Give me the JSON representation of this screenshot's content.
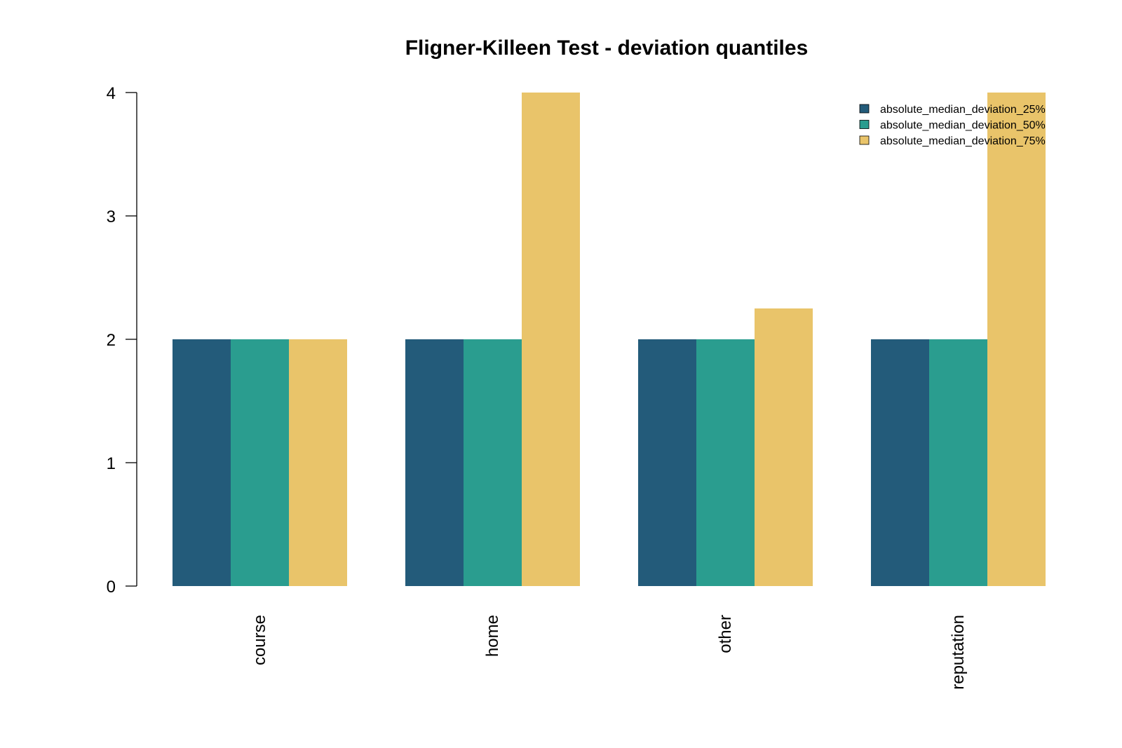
{
  "chart_data": {
    "type": "bar",
    "title": "Fligner-Killeen Test - deviation quantiles",
    "xlabel": "",
    "ylabel": "",
    "categories": [
      "course",
      "home",
      "other",
      "reputation"
    ],
    "series": [
      {
        "name": "absolute_median_deviation_25%",
        "color": "#235B7A",
        "values": [
          2,
          2,
          2,
          2
        ]
      },
      {
        "name": "absolute_median_deviation_50%",
        "color": "#2A9D8F",
        "values": [
          2,
          2,
          2,
          2
        ]
      },
      {
        "name": "absolute_median_deviation_75%",
        "color": "#E9C46A",
        "values": [
          2,
          4,
          2.25,
          4
        ]
      }
    ],
    "ylim": [
      0,
      4
    ],
    "yticks": [
      0,
      1,
      2,
      3,
      4
    ],
    "grid": false,
    "legend_position": "top-right"
  }
}
